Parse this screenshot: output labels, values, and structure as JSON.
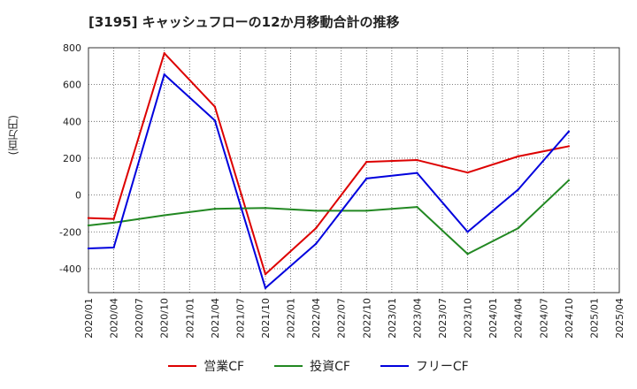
{
  "chart_data": {
    "type": "line",
    "title": "[3195]  キャッシュフローの12か月移動合計の推移",
    "ylabel": "(百万円)",
    "xlabel": "",
    "ylim": [
      -530,
      800
    ],
    "yticks": [
      -400,
      -200,
      0,
      200,
      400,
      600,
      800
    ],
    "categories": [
      "2020/01",
      "2020/04",
      "2020/07",
      "2020/10",
      "2021/01",
      "2021/04",
      "2021/07",
      "2021/10",
      "2022/01",
      "2022/04",
      "2022/07",
      "2022/10",
      "2023/01",
      "2023/04",
      "2023/07",
      "2023/10",
      "2024/01",
      "2024/04",
      "2024/07",
      "2024/10",
      "2025/01",
      "2025/04"
    ],
    "grid": true,
    "legend_position": "bottom",
    "series": [
      {
        "name": "営業CF",
        "color": "#dd0000",
        "values": [
          -125,
          -130,
          null,
          770,
          null,
          480,
          null,
          -430,
          null,
          -180,
          null,
          180,
          null,
          190,
          null,
          122,
          null,
          210,
          null,
          265,
          null,
          null
        ]
      },
      {
        "name": "投資CF",
        "color": "#228822",
        "values": [
          -165,
          -150,
          null,
          -110,
          null,
          -75,
          null,
          -70,
          null,
          -85,
          null,
          -85,
          null,
          -65,
          null,
          -320,
          null,
          -180,
          null,
          80,
          null,
          null
        ]
      },
      {
        "name": "フリーCF",
        "color": "#0000dd",
        "values": [
          -290,
          -285,
          null,
          655,
          null,
          405,
          null,
          -505,
          null,
          -265,
          null,
          90,
          null,
          120,
          null,
          -200,
          null,
          30,
          null,
          345,
          null,
          null
        ]
      }
    ]
  }
}
